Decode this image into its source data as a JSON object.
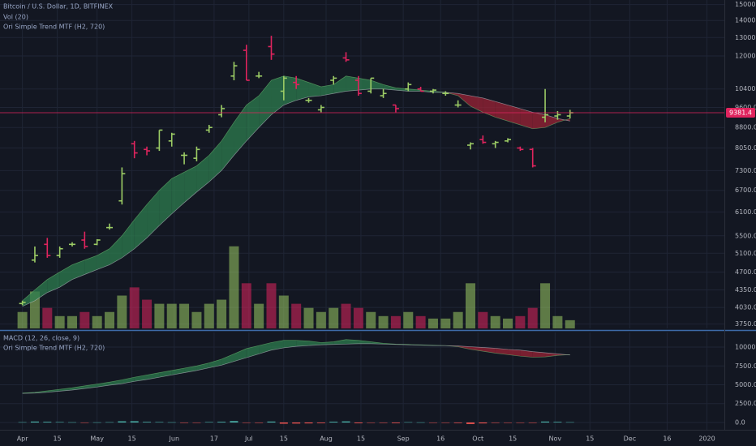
{
  "chart_data": [
    {
      "type": "ohlc",
      "title": "Bitcoin / U.S. Dollar, 1D, BITFINEX",
      "log_scale": true,
      "grid": true,
      "up_color": "#9ccc65",
      "down_color": "#e0245e",
      "x": [
        0,
        5,
        10,
        15,
        20,
        25,
        30,
        35,
        40,
        45,
        50,
        55,
        60,
        65,
        70,
        75,
        80,
        85,
        90,
        95,
        100,
        105,
        110,
        115,
        120,
        125,
        130,
        135,
        140,
        145,
        150,
        155,
        160,
        165,
        170,
        175,
        180,
        185,
        190,
        195,
        200,
        205,
        210,
        215,
        220
      ],
      "open": [
        4100,
        4950,
        5300,
        5050,
        5300,
        5400,
        5300,
        5700,
        6400,
        8200,
        8000,
        8050,
        8300,
        7800,
        7700,
        8700,
        9300,
        11000,
        12300,
        11000,
        12500,
        10300,
        10700,
        9900,
        9500,
        10800,
        11900,
        10800,
        10300,
        10100,
        9700,
        10400,
        10400,
        10300,
        10200,
        9700,
        8150,
        8350,
        8200,
        8300,
        8050,
        8000,
        9200,
        9250,
        9250
      ],
      "high": [
        4150,
        5250,
        5450,
        5250,
        5350,
        5600,
        5420,
        5800,
        7400,
        8300,
        8100,
        8700,
        8600,
        7900,
        8100,
        8900,
        9700,
        11700,
        12600,
        11200,
        13100,
        11000,
        11000,
        10000,
        9700,
        11000,
        12200,
        11000,
        10900,
        10400,
        9700,
        10700,
        10500,
        10400,
        10300,
        9900,
        8250,
        8500,
        8300,
        8400,
        8100,
        8050,
        10400,
        9450,
        9500
      ],
      "low": [
        4070,
        4900,
        5000,
        5000,
        5250,
        5200,
        5280,
        5650,
        6300,
        7700,
        7800,
        7950,
        8100,
        7500,
        7600,
        8600,
        9200,
        10800,
        10800,
        10900,
        11800,
        9900,
        10400,
        9800,
        9400,
        10600,
        11700,
        10100,
        10200,
        10000,
        9400,
        10300,
        10300,
        10200,
        10100,
        9600,
        8000,
        8200,
        8050,
        8250,
        7950,
        7400,
        9000,
        9100,
        9150
      ],
      "close": [
        4120,
        5050,
        5050,
        5200,
        5300,
        5250,
        5400,
        5700,
        7200,
        7880,
        7950,
        8700,
        8550,
        7800,
        8000,
        8800,
        9550,
        11500,
        10800,
        11000,
        12100,
        10900,
        10600,
        9900,
        9600,
        10900,
        11800,
        10200,
        10900,
        10200,
        9550,
        10600,
        10300,
        10350,
        10200,
        9700,
        8200,
        8250,
        8250,
        8350,
        8000,
        7450,
        9300,
        9300,
        9381.4
      ],
      "last_price": 9381.4,
      "xlim": [
        -9,
        282
      ],
      "xticks": [
        {
          "value": 0,
          "label": "Apr"
        },
        {
          "value": 14,
          "label": "15"
        },
        {
          "value": 30,
          "label": "May"
        },
        {
          "value": 44,
          "label": "15"
        },
        {
          "value": 61,
          "label": "Jun"
        },
        {
          "value": 77,
          "label": "17"
        },
        {
          "value": 91,
          "label": "Jul"
        },
        {
          "value": 105,
          "label": "15"
        },
        {
          "value": 122,
          "label": "Aug"
        },
        {
          "value": 136,
          "label": "15"
        },
        {
          "value": 153,
          "label": "Sep"
        },
        {
          "value": 168,
          "label": "16"
        },
        {
          "value": 183,
          "label": "Oct"
        },
        {
          "value": 197,
          "label": "15"
        },
        {
          "value": 214,
          "label": "Nov"
        },
        {
          "value": 228,
          "label": "15"
        },
        {
          "value": 244,
          "label": "Dec"
        },
        {
          "value": 259,
          "label": "16"
        },
        {
          "value": 275,
          "label": "2020"
        }
      ],
      "ylim": [
        3680,
        15300
      ],
      "yticks": [
        {
          "value": 3750,
          "label": "3750.0"
        },
        {
          "value": 4030,
          "label": "4030.0"
        },
        {
          "value": 4350,
          "label": "4350.0"
        },
        {
          "value": 4700,
          "label": "4700.0"
        },
        {
          "value": 5100,
          "label": "5100.0"
        },
        {
          "value": 5500,
          "label": "5500.0"
        },
        {
          "value": 6100,
          "label": "6100.0"
        },
        {
          "value": 6700,
          "label": "6700.0"
        },
        {
          "value": 7300,
          "label": "7300.0"
        },
        {
          "value": 8050,
          "label": "8050.0"
        },
        {
          "value": 8800,
          "label": "8800.0"
        },
        {
          "value": 9600,
          "label": "9600.0"
        },
        {
          "value": 10400,
          "label": "10400.0"
        },
        {
          "value": 12000,
          "label": "12000.0"
        },
        {
          "value": 13000,
          "label": "13000.0"
        },
        {
          "value": 14000,
          "label": "14000.0"
        },
        {
          "value": 15000,
          "label": "15000.0"
        }
      ],
      "volume": {
        "name": "Vol (20)",
        "ylim": [
          0,
          400
        ],
        "values": [
          20,
          45,
          25,
          15,
          15,
          20,
          15,
          20,
          40,
          50,
          35,
          30,
          30,
          30,
          20,
          30,
          35,
          100,
          55,
          30,
          55,
          40,
          30,
          25,
          20,
          25,
          30,
          25,
          20,
          15,
          15,
          20,
          15,
          12,
          12,
          20,
          55,
          20,
          15,
          12,
          15,
          25,
          55,
          15,
          10
        ]
      },
      "trend": {
        "name": "Ori Simple Trend MTF (H2, 720)",
        "up_color": "#2e7d4f",
        "down_color": "#9b2335",
        "fast": [
          4150,
          4350,
          4550,
          4700,
          4850,
          4950,
          5050,
          5200,
          5500,
          5900,
          6300,
          6700,
          7050,
          7250,
          7450,
          7800,
          8300,
          9000,
          9700,
          10100,
          10800,
          11000,
          10900,
          10700,
          10500,
          10600,
          11000,
          10900,
          10800,
          10600,
          10450,
          10400,
          10350,
          10300,
          10250,
          10100,
          9650,
          9400,
          9200,
          9050,
          8900,
          8750,
          8800,
          9000,
          9150
        ],
        "slow": [
          4050,
          4150,
          4300,
          4400,
          4550,
          4650,
          4750,
          4850,
          5000,
          5200,
          5450,
          5750,
          6050,
          6350,
          6650,
          6950,
          7300,
          7800,
          8300,
          8800,
          9300,
          9700,
          9900,
          10050,
          10100,
          10200,
          10300,
          10350,
          10400,
          10400,
          10350,
          10300,
          10300,
          10250,
          10250,
          10200,
          10100,
          10000,
          9850,
          9700,
          9550,
          9400,
          9300,
          9150,
          9050
        ]
      }
    },
    {
      "type": "band",
      "title": "MACD (12, 26, close, 9)",
      "grid": true,
      "ylim": [
        -970,
        11940
      ],
      "yticks": [
        {
          "value": 0,
          "label": "0.0"
        },
        {
          "value": 2500,
          "label": "2500.0"
        },
        {
          "value": 5000,
          "label": "5000.0"
        },
        {
          "value": 7500,
          "label": "7500.0"
        },
        {
          "value": 10000,
          "label": "10000.0"
        }
      ],
      "histogram": [
        40,
        120,
        90,
        60,
        30,
        -20,
        20,
        40,
        150,
        160,
        80,
        60,
        30,
        -60,
        -40,
        60,
        90,
        180,
        -40,
        -60,
        120,
        -160,
        -140,
        -120,
        -90,
        100,
        140,
        -100,
        -40,
        -60,
        -90,
        40,
        20,
        -20,
        -30,
        -80,
        -200,
        -120,
        -60,
        -20,
        -40,
        -60,
        120,
        80,
        40
      ],
      "hist_up_color": "#4db6ac",
      "hist_down_color": "#ef5350",
      "trend": {
        "name": "Ori Simple Trend MTF (H2, 720)",
        "up_color": "#2e7d4f",
        "down_color": "#9b2335",
        "fast": [
          3900,
          4000,
          4200,
          4400,
          4600,
          4850,
          5100,
          5350,
          5650,
          6000,
          6300,
          6600,
          6900,
          7200,
          7500,
          7900,
          8400,
          9100,
          9800,
          10200,
          10600,
          10900,
          10900,
          10800,
          10600,
          10700,
          11000,
          10900,
          10700,
          10500,
          10400,
          10350,
          10300,
          10250,
          10200,
          10050,
          9700,
          9450,
          9200,
          9000,
          8800,
          8650,
          8700,
          8900,
          9000
        ],
        "slow": [
          3850,
          3900,
          4000,
          4150,
          4300,
          4500,
          4700,
          4950,
          5150,
          5450,
          5700,
          6000,
          6300,
          6600,
          6900,
          7250,
          7600,
          8100,
          8600,
          9100,
          9600,
          9900,
          10100,
          10200,
          10300,
          10350,
          10400,
          10450,
          10450,
          10400,
          10350,
          10300,
          10250,
          10200,
          10200,
          10150,
          10050,
          9950,
          9850,
          9700,
          9600,
          9400,
          9250,
          9100,
          8950
        ]
      }
    }
  ]
}
